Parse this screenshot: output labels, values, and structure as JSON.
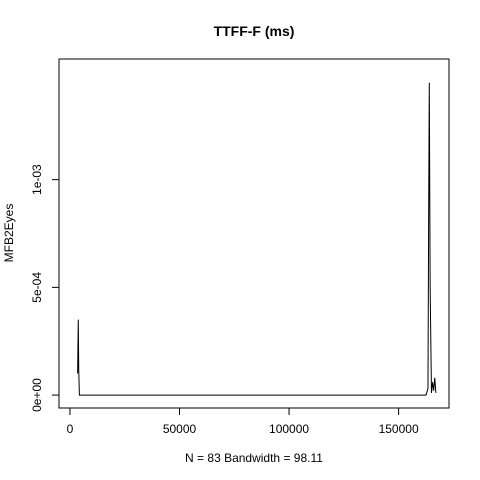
{
  "chart_data": {
    "type": "line",
    "title": "TTFF-F (ms)",
    "xlabel": "N = 83   Bandwidth = 98.11",
    "ylabel": "MFB2Eyes",
    "xlim": [
      -5000,
      173000
    ],
    "ylim": [
      -6e-05,
      0.00156
    ],
    "x_ticks": [
      0,
      50000,
      100000,
      150000
    ],
    "x_tick_labels": [
      "0",
      "50000",
      "100000",
      "150000"
    ],
    "y_ticks": [
      0,
      0.0005,
      0.001
    ],
    "y_tick_labels": [
      "0e+00",
      "5e-04",
      "1e-03"
    ],
    "grid": false,
    "series": [
      {
        "x": [
          3500,
          3800,
          4000,
          4300,
          5000,
          162500,
          163400,
          163700,
          164000,
          164400,
          165000,
          165500,
          166000,
          166500,
          167000
        ],
        "y": [
          0.0001,
          0.00035,
          0.00012,
          0.0,
          0.0,
          0.0,
          3e-05,
          0.0008,
          0.00145,
          0.0005,
          1e-05,
          6e-05,
          2e-05,
          8e-05,
          1e-05
        ]
      }
    ]
  }
}
